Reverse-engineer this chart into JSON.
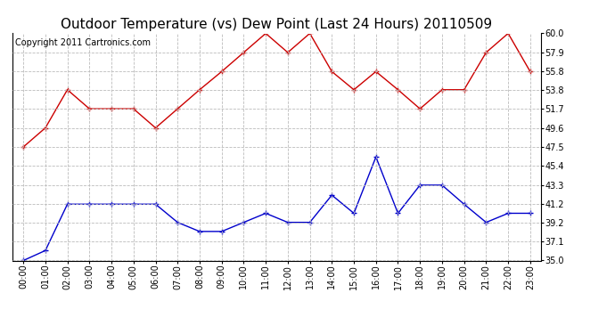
{
  "title": "Outdoor Temperature (vs) Dew Point (Last 24 Hours) 20110509",
  "copyright": "Copyright 2011 Cartronics.com",
  "hours": [
    "00:00",
    "01:00",
    "02:00",
    "03:00",
    "04:00",
    "05:00",
    "06:00",
    "07:00",
    "08:00",
    "09:00",
    "10:00",
    "11:00",
    "12:00",
    "13:00",
    "14:00",
    "15:00",
    "16:00",
    "17:00",
    "18:00",
    "19:00",
    "20:00",
    "21:00",
    "22:00",
    "23:00"
  ],
  "temp": [
    47.5,
    49.6,
    53.8,
    51.7,
    51.7,
    51.7,
    49.6,
    51.7,
    53.8,
    55.8,
    57.9,
    60.0,
    57.9,
    60.0,
    55.8,
    53.8,
    55.8,
    53.8,
    51.7,
    53.8,
    53.8,
    57.9,
    60.0,
    55.8
  ],
  "dew": [
    35.0,
    36.1,
    41.2,
    41.2,
    41.2,
    41.2,
    41.2,
    39.2,
    38.2,
    38.2,
    39.2,
    40.2,
    39.2,
    39.2,
    42.2,
    40.2,
    46.4,
    40.2,
    43.3,
    43.3,
    41.2,
    39.2,
    40.2,
    40.2
  ],
  "temp_color": "#cc0000",
  "dew_color": "#0000cc",
  "bg_color": "#ffffff",
  "grid_color": "#bbbbbb",
  "ylim_min": 35.0,
  "ylim_max": 60.0,
  "yticks": [
    35.0,
    37.1,
    39.2,
    41.2,
    43.3,
    45.4,
    47.5,
    49.6,
    51.7,
    53.8,
    55.8,
    57.9,
    60.0
  ],
  "title_fontsize": 11,
  "copyright_fontsize": 7,
  "tick_fontsize": 7,
  "marker": "+",
  "markersize": 5,
  "linewidth": 1.0
}
